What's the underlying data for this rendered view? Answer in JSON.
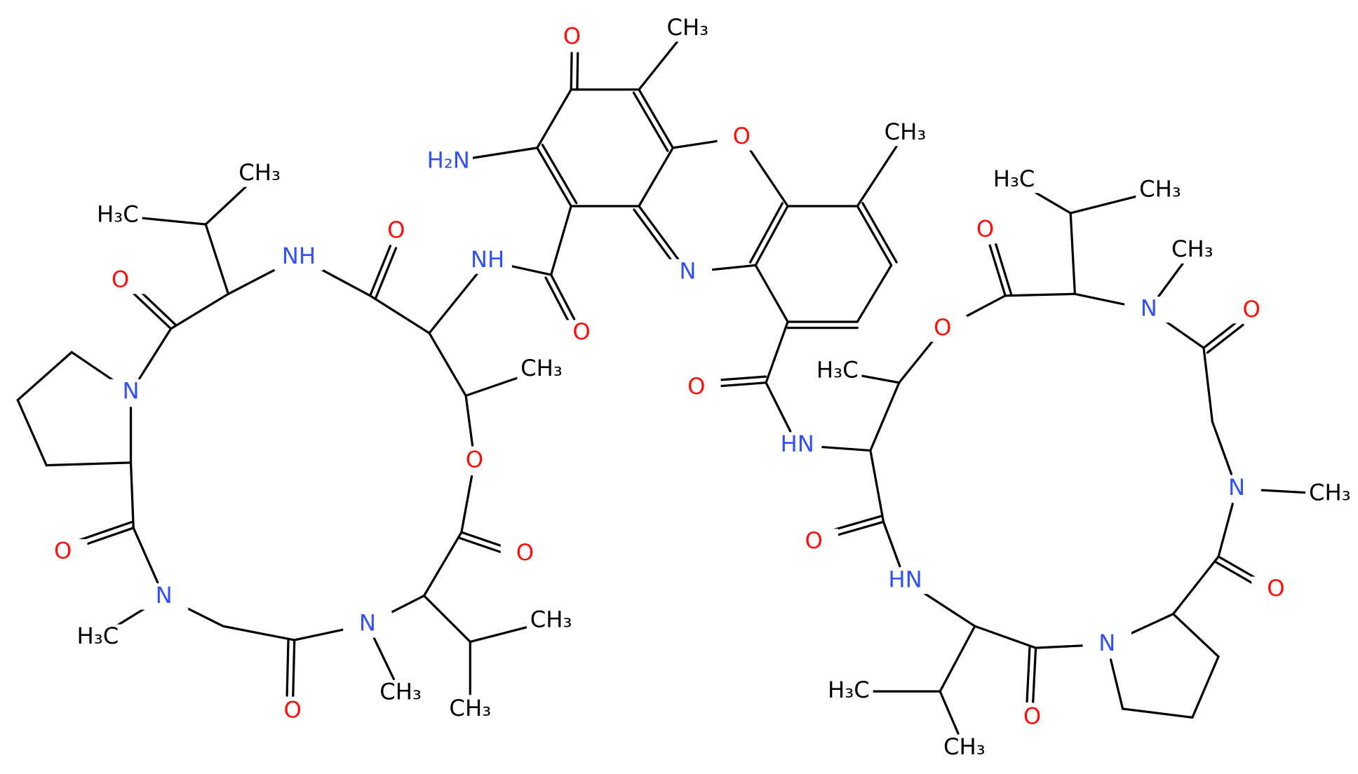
{
  "atoms": [
    "O",
    "CH₃",
    "H₂N",
    "O",
    "CH₃",
    "CH₃",
    "H₃C",
    "O",
    "NH",
    "NH",
    "O",
    "O",
    "N",
    "H₃C",
    "CH₃",
    "O",
    "CH₃",
    "N",
    "O",
    "O",
    "CH₃",
    "N",
    "O",
    "H₃C",
    "HN",
    "O",
    "N",
    "CH₃",
    "O",
    "O",
    "O",
    "N",
    "HN",
    "O",
    "CH₃",
    "N",
    "H₃C",
    "N",
    "CH₃",
    "CH₃",
    "O",
    "H₃C",
    "O",
    "CH₃"
  ]
}
